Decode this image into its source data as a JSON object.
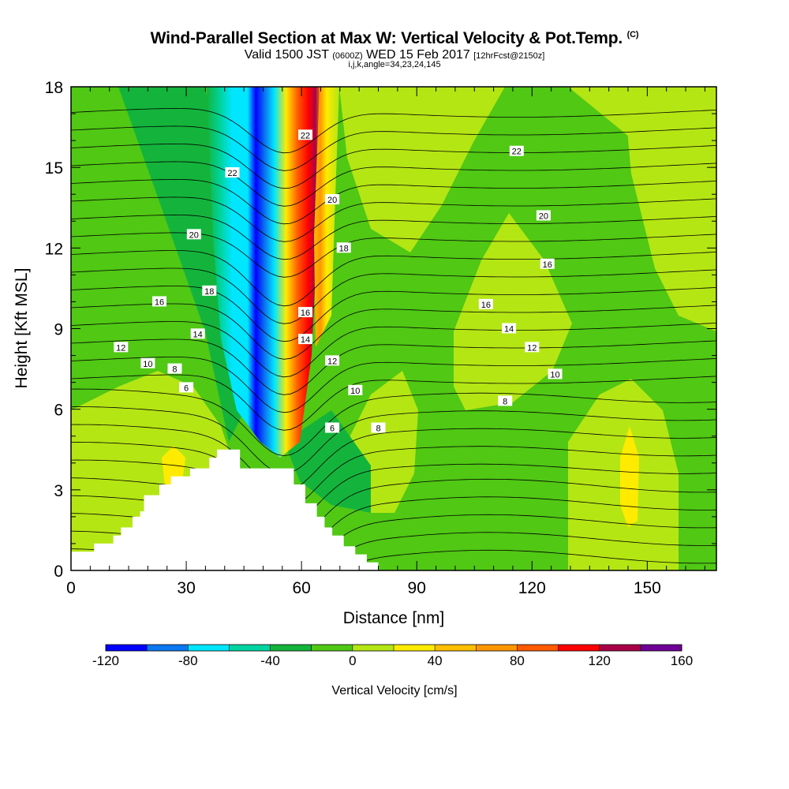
{
  "title": {
    "main": "Wind-Parallel Section at Max W: Vertical Velocity & Pot.Temp.",
    "main_unit": "(C)",
    "valid_prefix": "Valid 1500 JST",
    "valid_utc": "(0600Z)",
    "valid_date": "WED 15 Feb 2017",
    "forecast": "[12hrFcst@2150z]",
    "params": "i,j,k,angle=34,23,24,145"
  },
  "chart_data": {
    "type": "heatmap",
    "xlabel": "Distance [nm]",
    "ylabel": "Height [Kft MSL]",
    "xlim": [
      0,
      168
    ],
    "ylim": [
      0,
      18
    ],
    "xticks": [
      "0",
      "30",
      "60",
      "90",
      "120",
      "150"
    ],
    "yticks": [
      "0",
      "3",
      "6",
      "9",
      "12",
      "15",
      "18"
    ],
    "colorbar": {
      "title": "Vertical Velocity [cm/s]",
      "labels": [
        "-120",
        "-80",
        "-40",
        "0",
        "40",
        "80",
        "120",
        "160"
      ],
      "bins": [
        {
          "from": -120,
          "to": -100,
          "color": "#0000ff"
        },
        {
          "from": -100,
          "to": -80,
          "color": "#0a78f0"
        },
        {
          "from": -80,
          "to": -60,
          "color": "#00e6ff"
        },
        {
          "from": -60,
          "to": -40,
          "color": "#00d4a0"
        },
        {
          "from": -40,
          "to": -20,
          "color": "#14b43c"
        },
        {
          "from": -20,
          "to": 0,
          "color": "#50c814"
        },
        {
          "from": 0,
          "to": 20,
          "color": "#b4e614"
        },
        {
          "from": 20,
          "to": 40,
          "color": "#ffeb00"
        },
        {
          "from": 40,
          "to": 60,
          "color": "#ffbe00"
        },
        {
          "from": 60,
          "to": 80,
          "color": "#ff9600"
        },
        {
          "from": 80,
          "to": 100,
          "color": "#ff5a00"
        },
        {
          "from": 100,
          "to": 120,
          "color": "#ff0000"
        },
        {
          "from": 120,
          "to": 140,
          "color": "#aa0046"
        },
        {
          "from": 140,
          "to": 160,
          "color": "#6e0096"
        }
      ]
    },
    "theta_contour_labels": [
      {
        "x": 68,
        "y": 5.3,
        "label": "6"
      },
      {
        "x": 30,
        "y": 6.8,
        "label": "6"
      },
      {
        "x": 27,
        "y": 7.5,
        "label": "8"
      },
      {
        "x": 80,
        "y": 5.3,
        "label": "8"
      },
      {
        "x": 113,
        "y": 6.3,
        "label": "8"
      },
      {
        "x": 20,
        "y": 7.7,
        "label": "10"
      },
      {
        "x": 74,
        "y": 6.7,
        "label": "10"
      },
      {
        "x": 126,
        "y": 7.3,
        "label": "10"
      },
      {
        "x": 13,
        "y": 8.3,
        "label": "12"
      },
      {
        "x": 68,
        "y": 7.8,
        "label": "12"
      },
      {
        "x": 120,
        "y": 8.3,
        "label": "12"
      },
      {
        "x": 33,
        "y": 8.8,
        "label": "14"
      },
      {
        "x": 61,
        "y": 8.6,
        "label": "14"
      },
      {
        "x": 114,
        "y": 9.0,
        "label": "14"
      },
      {
        "x": 23,
        "y": 10.0,
        "label": "16"
      },
      {
        "x": 61,
        "y": 9.6,
        "label": "16"
      },
      {
        "x": 108,
        "y": 9.9,
        "label": "16"
      },
      {
        "x": 124,
        "y": 11.4,
        "label": "16"
      },
      {
        "x": 36,
        "y": 10.4,
        "label": "18"
      },
      {
        "x": 71,
        "y": 12.0,
        "label": "18"
      },
      {
        "x": 32,
        "y": 12.5,
        "label": "20"
      },
      {
        "x": 68,
        "y": 13.8,
        "label": "20"
      },
      {
        "x": 123,
        "y": 13.2,
        "label": "20"
      },
      {
        "x": 42,
        "y": 14.8,
        "label": "22"
      },
      {
        "x": 61,
        "y": 16.2,
        "label": "22"
      },
      {
        "x": 116,
        "y": 15.6,
        "label": "22"
      }
    ]
  }
}
